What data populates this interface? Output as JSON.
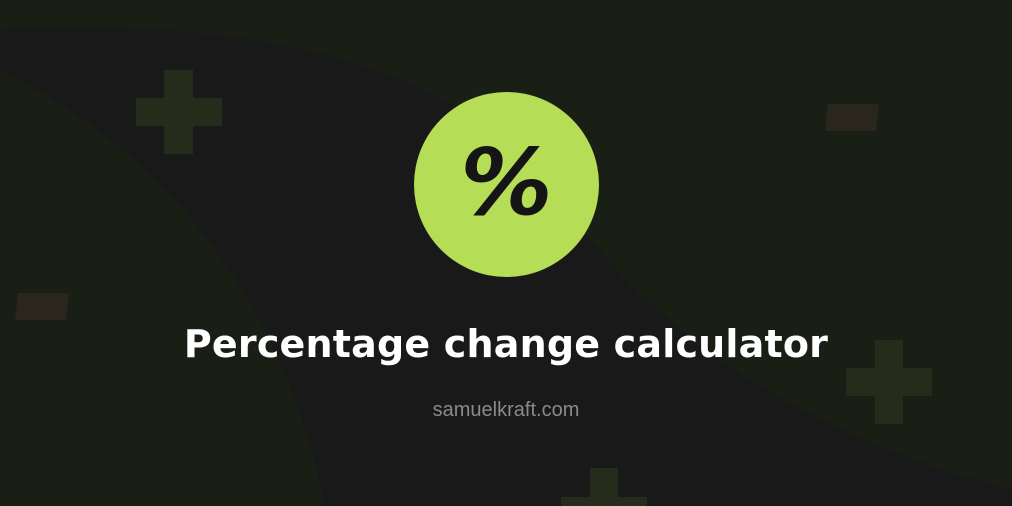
{
  "colors": {
    "background_green": "#1a1f16",
    "background_dark": "#191919",
    "accent": "#b5dd55",
    "title": "#ffffff",
    "subtitle": "#8a8a8a",
    "plus_decoration": "#252c1c",
    "minus_decoration": "#2a261c"
  },
  "logo": {
    "symbol": "%",
    "icon": "percent-icon"
  },
  "title": "Percentage change calculator",
  "subtitle": "samuelkraft.com",
  "decorations": [
    "plus-icon",
    "minus-icon",
    "minus-icon",
    "plus-icon",
    "plus-icon"
  ]
}
